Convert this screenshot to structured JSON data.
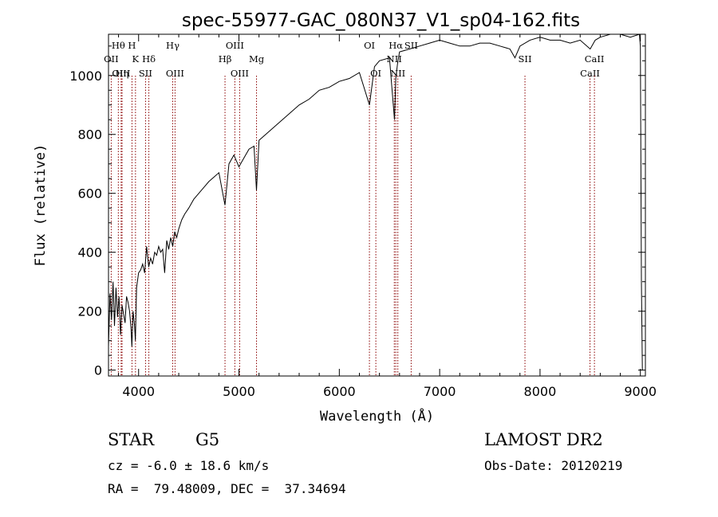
{
  "info": {
    "class_label": "STAR",
    "subclass": "G5",
    "cz_text": "cz = -6.0 ± 18.6 km/s",
    "radec_text": "RA =  79.48009, DEC =  37.34694",
    "survey": "LAMOST DR2",
    "obsdate_text": "Obs-Date: 20120219"
  },
  "chart_data": {
    "type": "line",
    "title": "spec-55977-GAC_080N37_V1_sp04-162.fits",
    "xlabel": "Wavelength (Å)",
    "ylabel": "Flux (relative)",
    "xlim": [
      3700,
      9050
    ],
    "ylim": [
      -20,
      1140
    ],
    "x_ticks": [
      4000,
      5000,
      6000,
      7000,
      8000,
      9000
    ],
    "y_ticks": [
      0,
      200,
      400,
      600,
      800,
      1000
    ],
    "grid": false,
    "line_color": "#000000",
    "marker_color": "#8b0000",
    "series": [
      {
        "x": [
          3700,
          3715,
          3730,
          3745,
          3760,
          3775,
          3790,
          3805,
          3820,
          3835,
          3850,
          3865,
          3880,
          3895,
          3910,
          3925,
          3933,
          3945,
          3960,
          3968,
          3980,
          4000,
          4020,
          4040,
          4060,
          4080,
          4101,
          4120,
          4140,
          4160,
          4180,
          4200,
          4220,
          4240,
          4260,
          4280,
          4300,
          4320,
          4340,
          4360,
          4380,
          4400,
          4430,
          4460,
          4500,
          4550,
          4600,
          4650,
          4700,
          4750,
          4800,
          4861,
          4900,
          4950,
          5000,
          5050,
          5100,
          5150,
          5175,
          5200,
          5300,
          5400,
          5500,
          5600,
          5700,
          5800,
          5900,
          6000,
          6100,
          6200,
          6300,
          6350,
          6400,
          6500,
          6550,
          6563,
          6580,
          6600,
          6700,
          6800,
          6900,
          7000,
          7100,
          7200,
          7300,
          7400,
          7500,
          7600,
          7700,
          7750,
          7800,
          7900,
          8000,
          8100,
          8200,
          8300,
          8400,
          8500,
          8550,
          8600,
          8700,
          8800,
          8900,
          8990,
          9000,
          9010,
          9020
        ],
        "y": [
          80,
          260,
          170,
          300,
          150,
          280,
          180,
          250,
          120,
          220,
          190,
          160,
          250,
          230,
          200,
          140,
          80,
          200,
          150,
          100,
          280,
          330,
          340,
          360,
          330,
          420,
          350,
          380,
          360,
          400,
          390,
          420,
          400,
          410,
          330,
          440,
          410,
          450,
          420,
          470,
          450,
          480,
          510,
          530,
          550,
          580,
          600,
          620,
          640,
          655,
          670,
          560,
          700,
          730,
          690,
          720,
          750,
          760,
          610,
          780,
          810,
          840,
          870,
          900,
          920,
          950,
          960,
          980,
          990,
          1010,
          900,
          1030,
          1050,
          1060,
          850,
          990,
          1040,
          1080,
          1090,
          1100,
          1110,
          1120,
          1110,
          1100,
          1100,
          1110,
          1110,
          1100,
          1090,
          1060,
          1100,
          1120,
          1130,
          1120,
          1120,
          1110,
          1120,
          1090,
          1120,
          1130,
          1140,
          1140,
          1130,
          1140,
          1100,
          300,
          0
        ]
      }
    ],
    "lines": [
      {
        "label": "OII",
        "wl": 3727,
        "row": 2
      },
      {
        "label": "Hθ",
        "wl": 3798,
        "row": 1
      },
      {
        "label": "OIII",
        "wl": 3826,
        "row": 3
      },
      {
        "label": "Hη",
        "wl": 3835,
        "row": 3
      },
      {
        "label": "H",
        "wl": 3934,
        "row": 1
      },
      {
        "label": "K",
        "wl": 3969,
        "row": 2
      },
      {
        "label": "SII",
        "wl": 4069,
        "row": 3
      },
      {
        "label": "Hδ",
        "wl": 4102,
        "row": 2
      },
      {
        "label": "Hγ",
        "wl": 4340,
        "row": 1
      },
      {
        "label": "OIII",
        "wl": 4363,
        "row": 3
      },
      {
        "label": "Hβ",
        "wl": 4861,
        "row": 2
      },
      {
        "label": "OIII",
        "wl": 4959,
        "row": 1
      },
      {
        "label": "OIII",
        "wl": 5007,
        "row": 3
      },
      {
        "label": "Mg",
        "wl": 5175,
        "row": 2
      },
      {
        "label": "OI",
        "wl": 6300,
        "row": 1
      },
      {
        "label": "OI",
        "wl": 6364,
        "row": 3
      },
      {
        "label": "NII",
        "wl": 6548,
        "row": 2
      },
      {
        "label": "Hα",
        "wl": 6563,
        "row": 1
      },
      {
        "label": "NII",
        "wl": 6583,
        "row": 3
      },
      {
        "label": "SII",
        "wl": 6716,
        "row": 1
      },
      {
        "label": "SII",
        "wl": 7850,
        "row": 2
      },
      {
        "label": "CaII",
        "wl": 8498,
        "row": 3
      },
      {
        "label": "CaII",
        "wl": 8542,
        "row": 2
      }
    ]
  }
}
